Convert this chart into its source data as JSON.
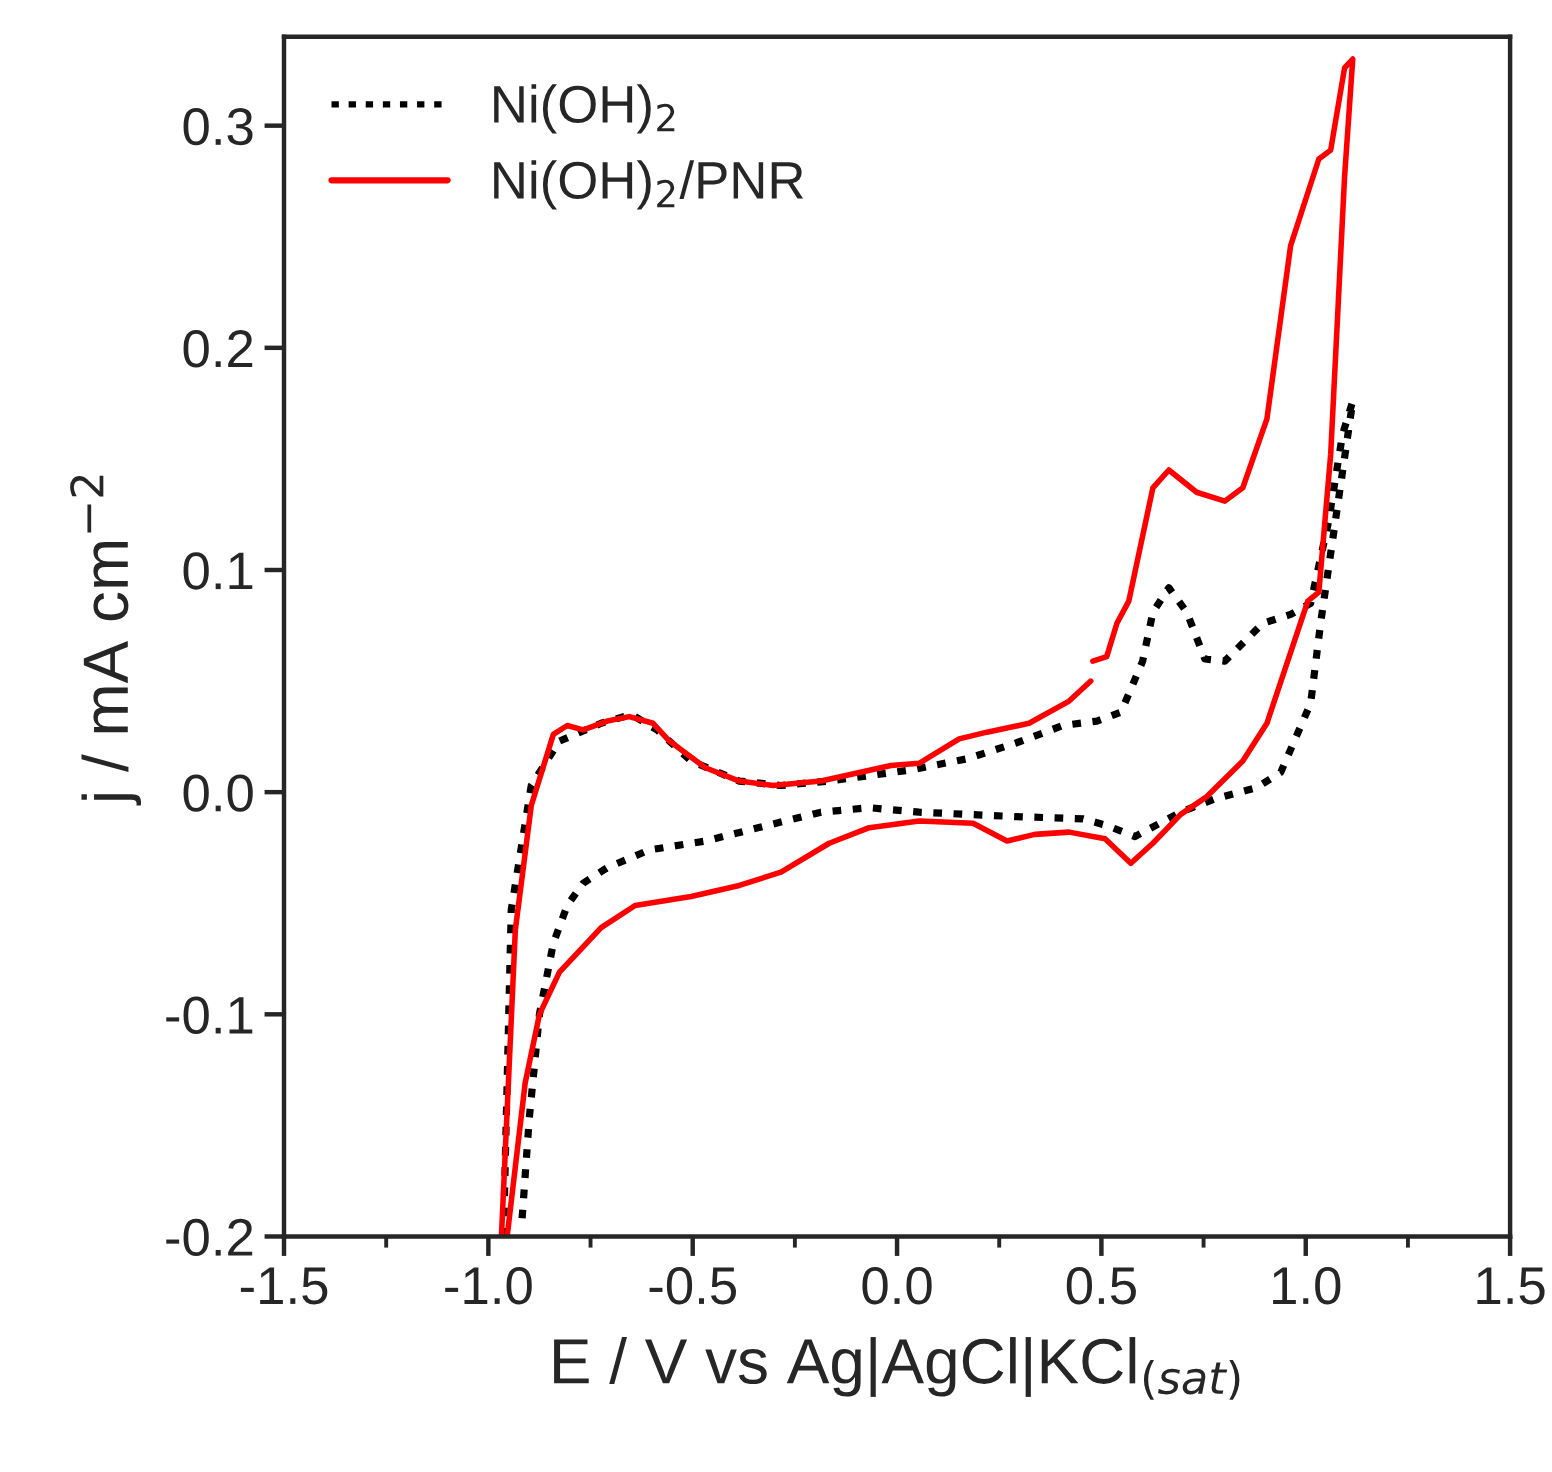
{
  "chart_data": {
    "type": "line",
    "xlabel": "E / V vs Ag|AgCl|KCl$_{(sat)}$",
    "ylabel": "j / mA cm$^{−2}$",
    "xlim": [
      -1.5,
      1.5
    ],
    "ylim": [
      -0.2,
      0.34
    ],
    "xticks": [
      {
        "value": -1.5,
        "label": "-1.5"
      },
      {
        "value": -1.0,
        "label": "-1.0"
      },
      {
        "value": -0.5,
        "label": "-0.5"
      },
      {
        "value": 0.0,
        "label": "0.0"
      },
      {
        "value": 0.5,
        "label": "0.5"
      },
      {
        "value": 1.0,
        "label": "1.0"
      },
      {
        "value": 1.5,
        "label": "1.5"
      }
    ],
    "yticks": [
      {
        "value": -0.2,
        "label": "-0.2"
      },
      {
        "value": -0.1,
        "label": "-0.1"
      },
      {
        "value": 0.0,
        "label": "0.0"
      },
      {
        "value": 0.1,
        "label": "0.1"
      },
      {
        "value": 0.2,
        "label": "0.2"
      },
      {
        "value": 0.3,
        "label": "0.3"
      }
    ],
    "grid": false,
    "legend": "top left",
    "marker": "none",
    "series": [
      {
        "name": "Ni(OH)$_{2}$",
        "color": "#000000",
        "line_style": "dotted",
        "x": [
          -0.963,
          -0.944,
          -0.895,
          -0.826,
          -0.724,
          -0.65,
          -0.587,
          -0.504,
          -0.386,
          -0.284,
          -0.166,
          0.034,
          0.171,
          0.289,
          0.406,
          0.489,
          0.548,
          0.601,
          0.626,
          0.665,
          0.709,
          0.753,
          0.802,
          0.895,
          0.963,
          1.012,
          1.056,
          1.09,
          1.115,
          1.037,
          1.012,
          0.939,
          0.88,
          0.778,
          0.694,
          0.582,
          0.513,
          0.455,
          0.289,
          0.054,
          -0.068,
          -0.186,
          -0.318,
          -0.469,
          -0.606,
          -0.709,
          -0.768,
          -0.807,
          -0.841,
          -0.875,
          -0.9,
          -0.919
        ],
        "values": [
          -0.2,
          -0.053,
          0.003,
          0.023,
          0.031,
          0.035,
          0.028,
          0.014,
          0.005,
          0.003,
          0.005,
          0.01,
          0.015,
          0.022,
          0.03,
          0.032,
          0.036,
          0.059,
          0.081,
          0.092,
          0.081,
          0.06,
          0.059,
          0.076,
          0.08,
          0.085,
          0.122,
          0.161,
          0.176,
          0.077,
          0.04,
          0.009,
          0.002,
          -0.003,
          -0.009,
          -0.02,
          -0.015,
          -0.012,
          -0.011,
          -0.009,
          -0.007,
          -0.009,
          -0.015,
          -0.022,
          -0.026,
          -0.034,
          -0.041,
          -0.051,
          -0.068,
          -0.1,
          -0.147,
          -0.196
        ]
      },
      {
        "name": "Ni(OH)$_{2}$/PNR",
        "color": "#ff0000",
        "line_style": "solid",
        "x": [
          -0.968,
          -0.934,
          -0.895,
          -0.841,
          -0.807,
          -0.768,
          -0.709,
          -0.655,
          -0.597,
          -0.557,
          -0.469,
          -0.386,
          -0.303,
          -0.186,
          -0.015,
          0.054,
          0.152,
          0.22,
          0.323,
          0.421,
          0.474,
          0.476,
          0.479,
          0.513,
          0.538,
          0.567,
          0.626,
          0.665,
          0.733,
          0.802,
          0.846,
          0.905,
          0.963,
          1.032,
          1.061,
          1.095,
          1.115,
          1.095,
          1.061,
          1.032,
          1.005,
          0.905,
          0.846,
          0.758,
          0.694,
          0.626,
          0.572,
          0.509,
          0.421,
          0.337,
          0.269,
          0.186,
          0.054,
          -0.068,
          -0.166,
          -0.284,
          -0.386,
          -0.504,
          -0.641,
          -0.724,
          -0.826,
          -0.875,
          -0.91,
          -0.954
        ],
        "values": [
          -0.2,
          -0.062,
          -0.006,
          0.026,
          0.03,
          0.028,
          0.032,
          0.034,
          0.031,
          0.023,
          0.011,
          0.005,
          0.003,
          0.005,
          0.012,
          0.013,
          0.024,
          0.027,
          0.031,
          0.041,
          0.05,
          null,
          0.059,
          0.061,
          0.076,
          0.086,
          0.137,
          0.145,
          0.135,
          0.131,
          0.137,
          0.168,
          0.246,
          0.285,
          0.289,
          0.326,
          0.33,
          0.277,
          0.152,
          0.09,
          0.086,
          0.031,
          0.014,
          -0.002,
          -0.01,
          -0.023,
          -0.032,
          -0.021,
          -0.018,
          -0.019,
          -0.022,
          -0.014,
          -0.013,
          -0.016,
          -0.023,
          -0.036,
          -0.042,
          -0.047,
          -0.051,
          -0.061,
          -0.081,
          -0.1,
          -0.131,
          -0.2
        ]
      }
    ]
  }
}
